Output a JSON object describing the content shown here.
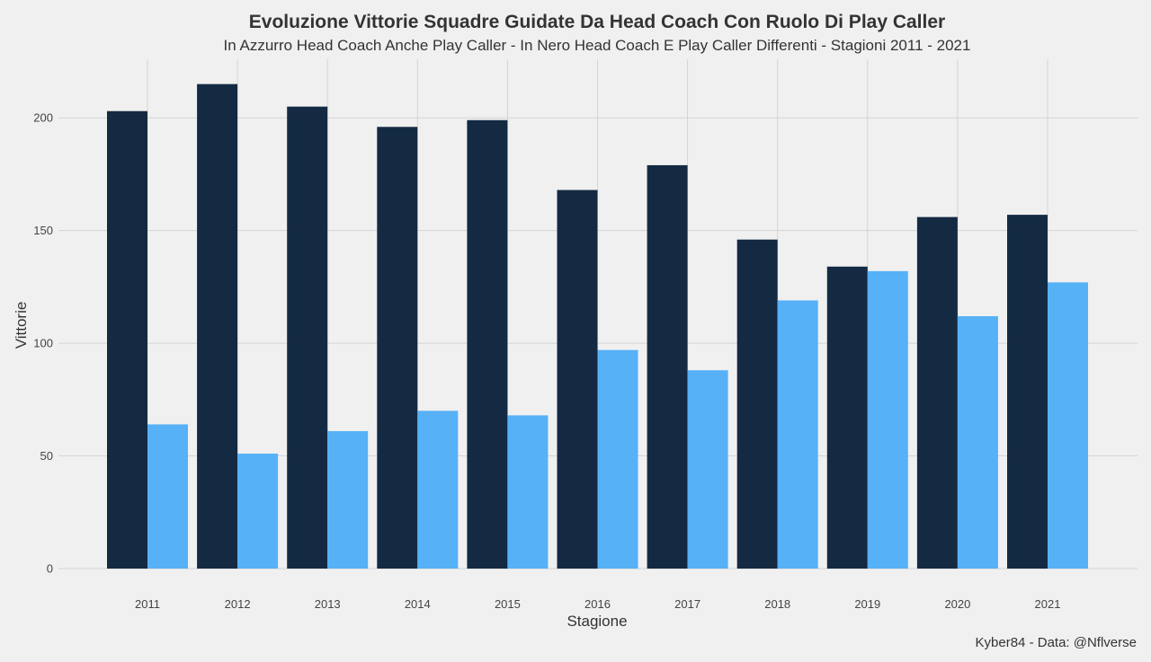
{
  "chart_data": {
    "type": "bar",
    "title": "Evoluzione Vittorie Squadre Guidate Da Head Coach Con Ruolo Di Play Caller",
    "subtitle": "In Azzurro Head Coach Anche Play Caller - In Nero Head Coach E Play Caller Differenti - Stagioni 2011 - 2021",
    "xlabel": "Stagione",
    "ylabel": "Vittorie",
    "caption": "Kyber84 - Data: @Nflverse",
    "categories": [
      "2011",
      "2012",
      "2013",
      "2014",
      "2015",
      "2016",
      "2017",
      "2018",
      "2019",
      "2020",
      "2021"
    ],
    "series": [
      {
        "color": "#142a43",
        "values": [
          203,
          215,
          205,
          196,
          199,
          168,
          179,
          146,
          134,
          156,
          157
        ]
      },
      {
        "color": "#56b1f7",
        "values": [
          64,
          51,
          61,
          70,
          68,
          97,
          88,
          119,
          132,
          112,
          127
        ]
      }
    ],
    "ylim": [
      0,
      226
    ],
    "yticks": [
      0,
      50,
      100,
      150,
      200
    ],
    "grid": true,
    "legend": "none"
  }
}
